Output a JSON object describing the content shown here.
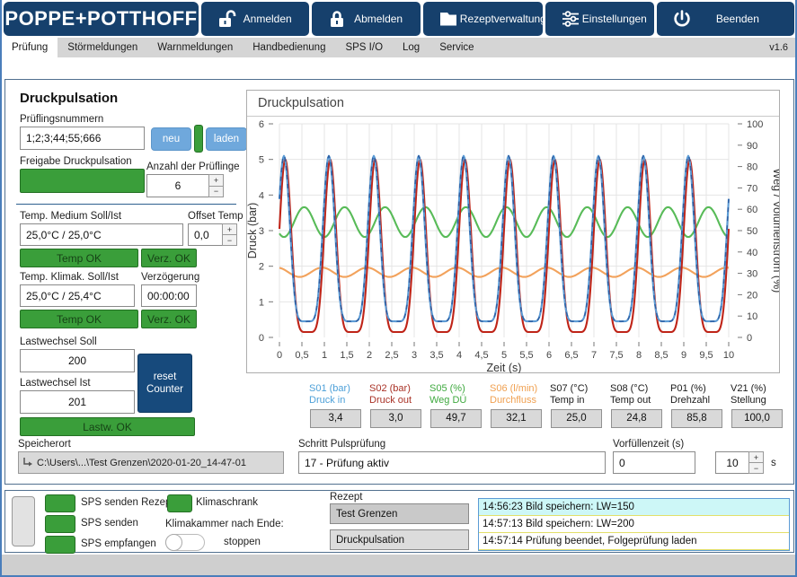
{
  "header": {
    "logo": "POPPE+POTTHOFF",
    "buttons": [
      {
        "label": "Anmelden",
        "icon": "unlock-icon"
      },
      {
        "label": "Abmelden",
        "icon": "lock-icon"
      },
      {
        "label": "Rezeptverwaltung",
        "icon": "folder-icon"
      },
      {
        "label": "Einstellungen",
        "icon": "sliders-icon"
      },
      {
        "label": "Beenden",
        "icon": "power-icon"
      }
    ]
  },
  "tabs": {
    "items": [
      {
        "label": "Prüfung"
      },
      {
        "label": "Störmeldungen"
      },
      {
        "label": "Warnmeldungen"
      },
      {
        "label": "Handbedienung"
      },
      {
        "label": "SPS I/O"
      },
      {
        "label": "Log"
      },
      {
        "label": "Service"
      }
    ],
    "version": "v1.6"
  },
  "panel": {
    "title": "Druckpulsation",
    "pruefling": {
      "label": "Prüflingsnummern",
      "value": "1;2;3;44;55;666",
      "neu": "neu",
      "laden": "laden"
    },
    "freigabe_label": "Freigabe Druckpulsation",
    "anzahl": {
      "label": "Anzahl der Prüflinge",
      "value": "6"
    },
    "temp_medium": {
      "label": "Temp. Medium Soll/Ist",
      "value": "25,0°C / 25,0°C",
      "offset_label": "Offset Temp",
      "offset_value": "0,0",
      "temp_ok": "Temp OK",
      "verz_ok": "Verz. OK"
    },
    "temp_klimak": {
      "label": "Temp. Klimak. Soll/Ist",
      "verz_label": "Verzögerung",
      "value": "25,0°C / 25,4°C",
      "verz_value": "00:00:00",
      "temp_ok": "Temp OK",
      "verz_ok": "Verz. OK"
    },
    "lastwechsel": {
      "soll_label": "Lastwechsel Soll",
      "soll": "200",
      "ist_label": "Lastwechsel Ist",
      "ist": "201",
      "reset_line1": "reset",
      "reset_line2": "Counter",
      "ok": "Lastw. OK"
    }
  },
  "chart_data": {
    "type": "line",
    "title": "Druckpulsation",
    "xlabel": "Zeit (s)",
    "ylabel_left": "Druck (bar)",
    "ylabel_right": "Weg / Volumenstrom (%)",
    "xlim": [
      0,
      10
    ],
    "ylim_left": [
      0,
      6
    ],
    "ylim_right": [
      0,
      100
    ],
    "grid": true,
    "x_ticks": [
      "0",
      "0,5",
      "1",
      "1,5",
      "2",
      "2,5",
      "3",
      "3,5",
      "4",
      "4,5",
      "5",
      "5,5",
      "6",
      "6,5",
      "7",
      "7,5",
      "8",
      "8,5",
      "9",
      "9,5",
      "10"
    ],
    "y_ticks_left": [
      0,
      1,
      2,
      3,
      4,
      5,
      6
    ],
    "y_ticks_right": [
      0,
      10,
      20,
      30,
      40,
      50,
      60,
      70,
      80,
      90,
      100
    ],
    "series": [
      {
        "name": "S06 Durchfluss (l/min)",
        "color": "#f2a25c",
        "axis": "right",
        "wave": "sine",
        "mean": 30.5,
        "amplitude": 2.2,
        "period": 1.0,
        "peak_t": 0.95
      },
      {
        "name": "S05 Weg DÜ (%)",
        "color": "#58bb58",
        "axis": "right",
        "wave": "sine",
        "mean": 54,
        "amplitude": 7,
        "period": 0.9,
        "peak_t": 0.55
      },
      {
        "name": "S02 Druck out (bar)",
        "color": "#bf2418",
        "axis": "left",
        "wave": "pulse",
        "min": 0.15,
        "max": 5.0,
        "period": 1.0,
        "peak_t": 0.13,
        "sharpness": 3
      },
      {
        "name": "S01 Druck in (bar)",
        "color": "#5b9bd5",
        "axis": "left",
        "wave": "pulse",
        "min": 0.45,
        "max": 5.1,
        "period": 1.0,
        "peak_t": 0.1,
        "sharpness": 3,
        "dash": "#2e5fa3"
      }
    ]
  },
  "sensors": [
    {
      "id": "S01 (bar)",
      "name": "Druck in",
      "value": "3,4",
      "color": "#4da0d8"
    },
    {
      "id": "S02 (bar)",
      "name": "Druck out",
      "value": "3,0",
      "color": "#a93226"
    },
    {
      "id": "S05 (%)",
      "name": "Weg DÜ",
      "value": "49,7",
      "color": "#3fa93f"
    },
    {
      "id": "S06 (l/min)",
      "name": "Durchfluss",
      "value": "32,1",
      "color": "#f0a050"
    },
    {
      "id": "S07 (°C)",
      "name": "Temp in",
      "value": "25,0",
      "color": "#1a1a1a"
    },
    {
      "id": "S08 (°C)",
      "name": "Temp out",
      "value": "24,8",
      "color": "#1a1a1a"
    },
    {
      "id": "P01 (%)",
      "name": "Drehzahl",
      "value": "85,8",
      "color": "#1a1a1a"
    },
    {
      "id": "V21 (%)",
      "name": "Stellung",
      "value": "100,0",
      "color": "#1a1a1a"
    }
  ],
  "speicherort": {
    "label": "Speicherort",
    "value": "C:\\Users\\...\\Test Grenzen\\2020-01-20_14-47-01"
  },
  "schritt": {
    "label": "Schritt Pulsprüfung",
    "value": "17 - Prüfung aktiv"
  },
  "vorfuell": {
    "label": "Vorfüllenzeit (s)",
    "value": "0",
    "spin_value": "10",
    "unit": "s"
  },
  "ui": {
    "plus": "+",
    "minus": "−"
  },
  "footer": {
    "sps_items": [
      {
        "label": "SPS senden Rezept"
      },
      {
        "label": "SPS senden"
      },
      {
        "label": "SPS empfangen"
      }
    ],
    "klimaschrank": "Klimaschrank",
    "klima_ende_label": "Klimakammer nach Ende:",
    "toggle_label": "stoppen",
    "rezept_label": "Rezept",
    "rezept1": "Test Grenzen",
    "rezept2": "Druckpulsation",
    "log": [
      {
        "text": "14:56:23 Bild speichern: LW=150"
      },
      {
        "text": "14:57:13 Bild speichern: LW=200"
      },
      {
        "text": "14:57:14 Prüfung beendet, Folgeprüfung laden"
      }
    ]
  }
}
